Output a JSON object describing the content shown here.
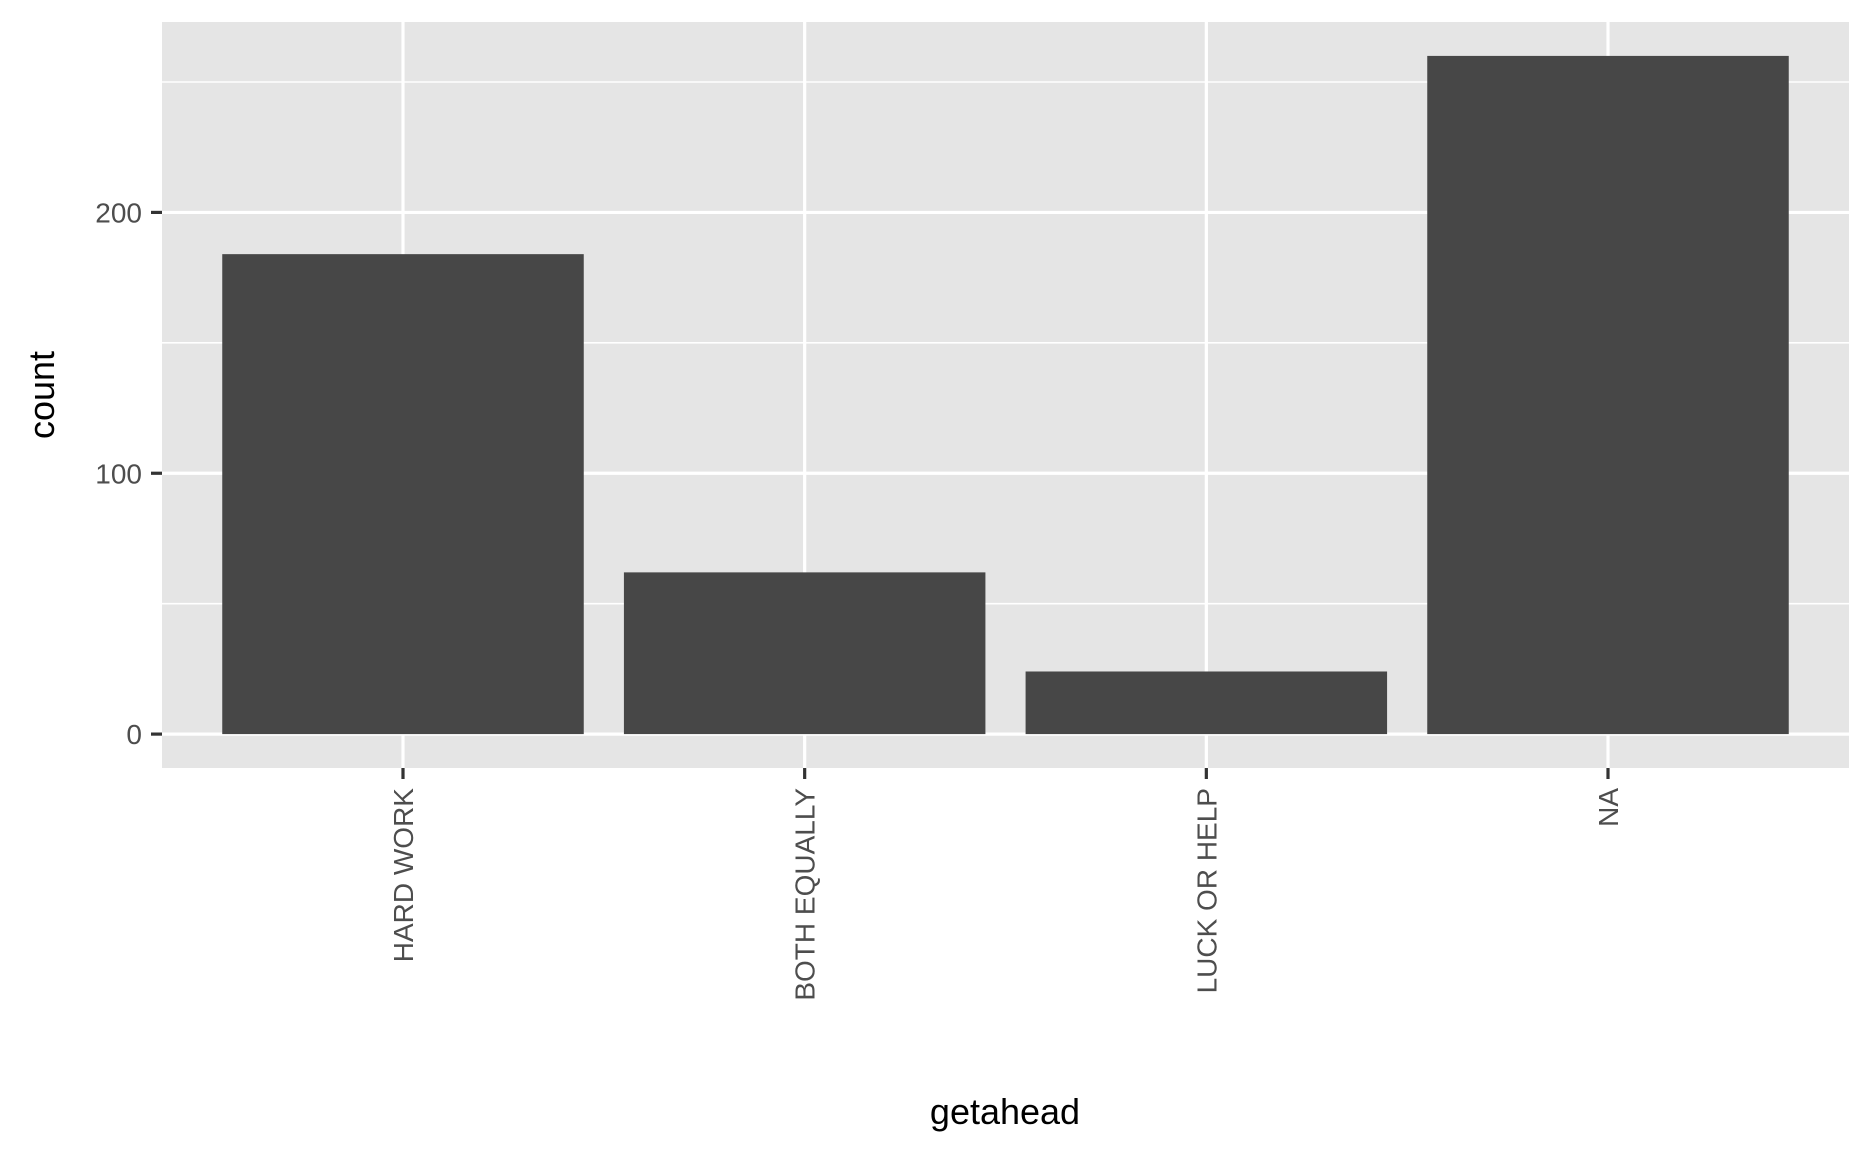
{
  "chart_data": {
    "type": "bar",
    "categories": [
      "HARD WORK",
      "BOTH EQUALLY",
      "LUCK OR HELP",
      "NA"
    ],
    "values": [
      184,
      62,
      24,
      260
    ],
    "xlabel": "getahead",
    "ylabel": "count",
    "ylim": [
      -13,
      273
    ],
    "yticks": [
      0,
      100,
      200
    ],
    "grid": true,
    "colors": {
      "panel_background": "#e5e5e5",
      "grid": "#ffffff",
      "bar_fill": "#474747",
      "tick_text": "#4d4d4d",
      "tick_mark": "#333333",
      "axis_title": "#000000"
    }
  }
}
